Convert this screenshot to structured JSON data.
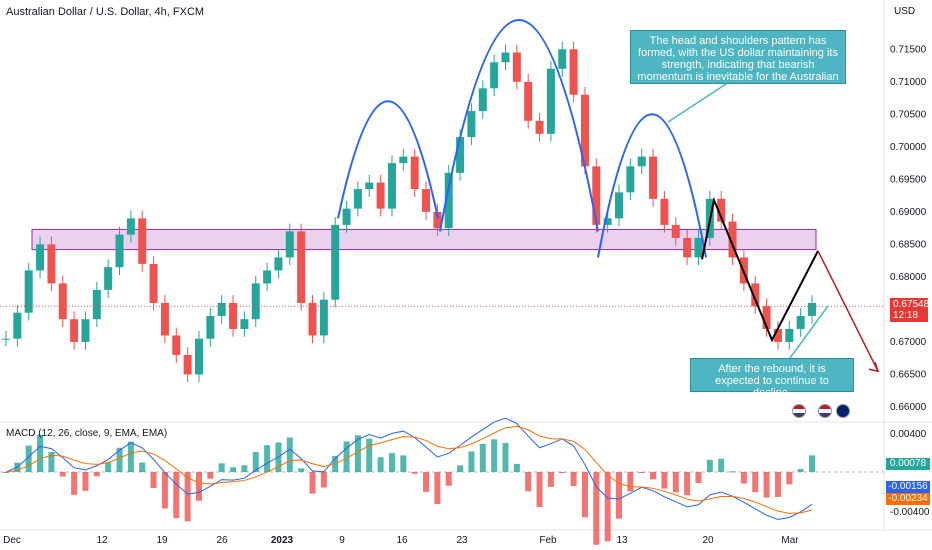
{
  "title": "Australian Dollar / U.S. Dollar, 4h, FXCM",
  "currency_label": "USD",
  "last_price": "0.67548",
  "countdown": "12:18",
  "annotations": {
    "top": "The head and shoulders pattern has formed, with the US dollar maintaining its strength, indicating that bearish momentum is inevitable for the Australian dollar.",
    "bottom": "After the rebound, it is expected to continue to decline."
  },
  "macd": {
    "title": "MACD (12, 26, close, 9, EMA, EMA)",
    "histogram_value": "0.00078",
    "macd_value": "-0.00156",
    "signal_value": "-0.00234",
    "axis_ticks": [
      "0.00400",
      "-0.00400"
    ]
  },
  "colors": {
    "up": "#26a69a",
    "down": "#ef5350",
    "pattern": "#2962ff",
    "zone_fill": "#e1bee7",
    "zone_border": "#9c27b0",
    "callout": "#4db6c2",
    "forecast": "#b71c1c",
    "macd_line": "#2962ff",
    "signal_line": "#ff6d00"
  },
  "chart_data": {
    "type": "line",
    "y_ticks": [
      "0.71500",
      "0.71000",
      "0.70500",
      "0.70000",
      "0.69500",
      "0.69000",
      "0.68500",
      "0.68000",
      "0.67500",
      "0.67000",
      "0.66500",
      "0.66000"
    ],
    "x_ticks": [
      "Dec",
      "12",
      "19",
      "26",
      "2023",
      "9",
      "16",
      "23",
      "Feb",
      "13",
      "20",
      "Mar"
    ],
    "ylim": [
      0.658,
      0.7195
    ],
    "resistance_zone": [
      0.6842,
      0.6873
    ],
    "series": [
      {
        "values": [
          0.6705,
          0.6745,
          0.681,
          0.685,
          0.679,
          0.6735,
          0.67,
          0.6735,
          0.678,
          0.6815,
          0.6865,
          0.689,
          0.682,
          0.676,
          0.671,
          0.668,
          0.665,
          0.6705,
          0.674,
          0.676,
          0.672,
          0.6735,
          0.679,
          0.681,
          0.683,
          0.687,
          0.676,
          0.671,
          0.6765,
          0.688,
          0.6905,
          0.6935,
          0.6945,
          0.6905,
          0.6975,
          0.6985,
          0.6935,
          0.69,
          0.6875,
          0.696,
          0.7015,
          0.7055,
          0.709,
          0.713,
          0.7145,
          0.71,
          0.704,
          0.702,
          0.712,
          0.715,
          0.708,
          0.697,
          0.688,
          0.689,
          0.693,
          0.697,
          0.6985,
          0.692,
          0.688,
          0.686,
          0.683,
          0.686,
          0.692,
          0.6885,
          0.683,
          0.679,
          0.6755,
          0.672,
          0.67,
          0.672,
          0.674,
          0.676
        ]
      }
    ]
  }
}
